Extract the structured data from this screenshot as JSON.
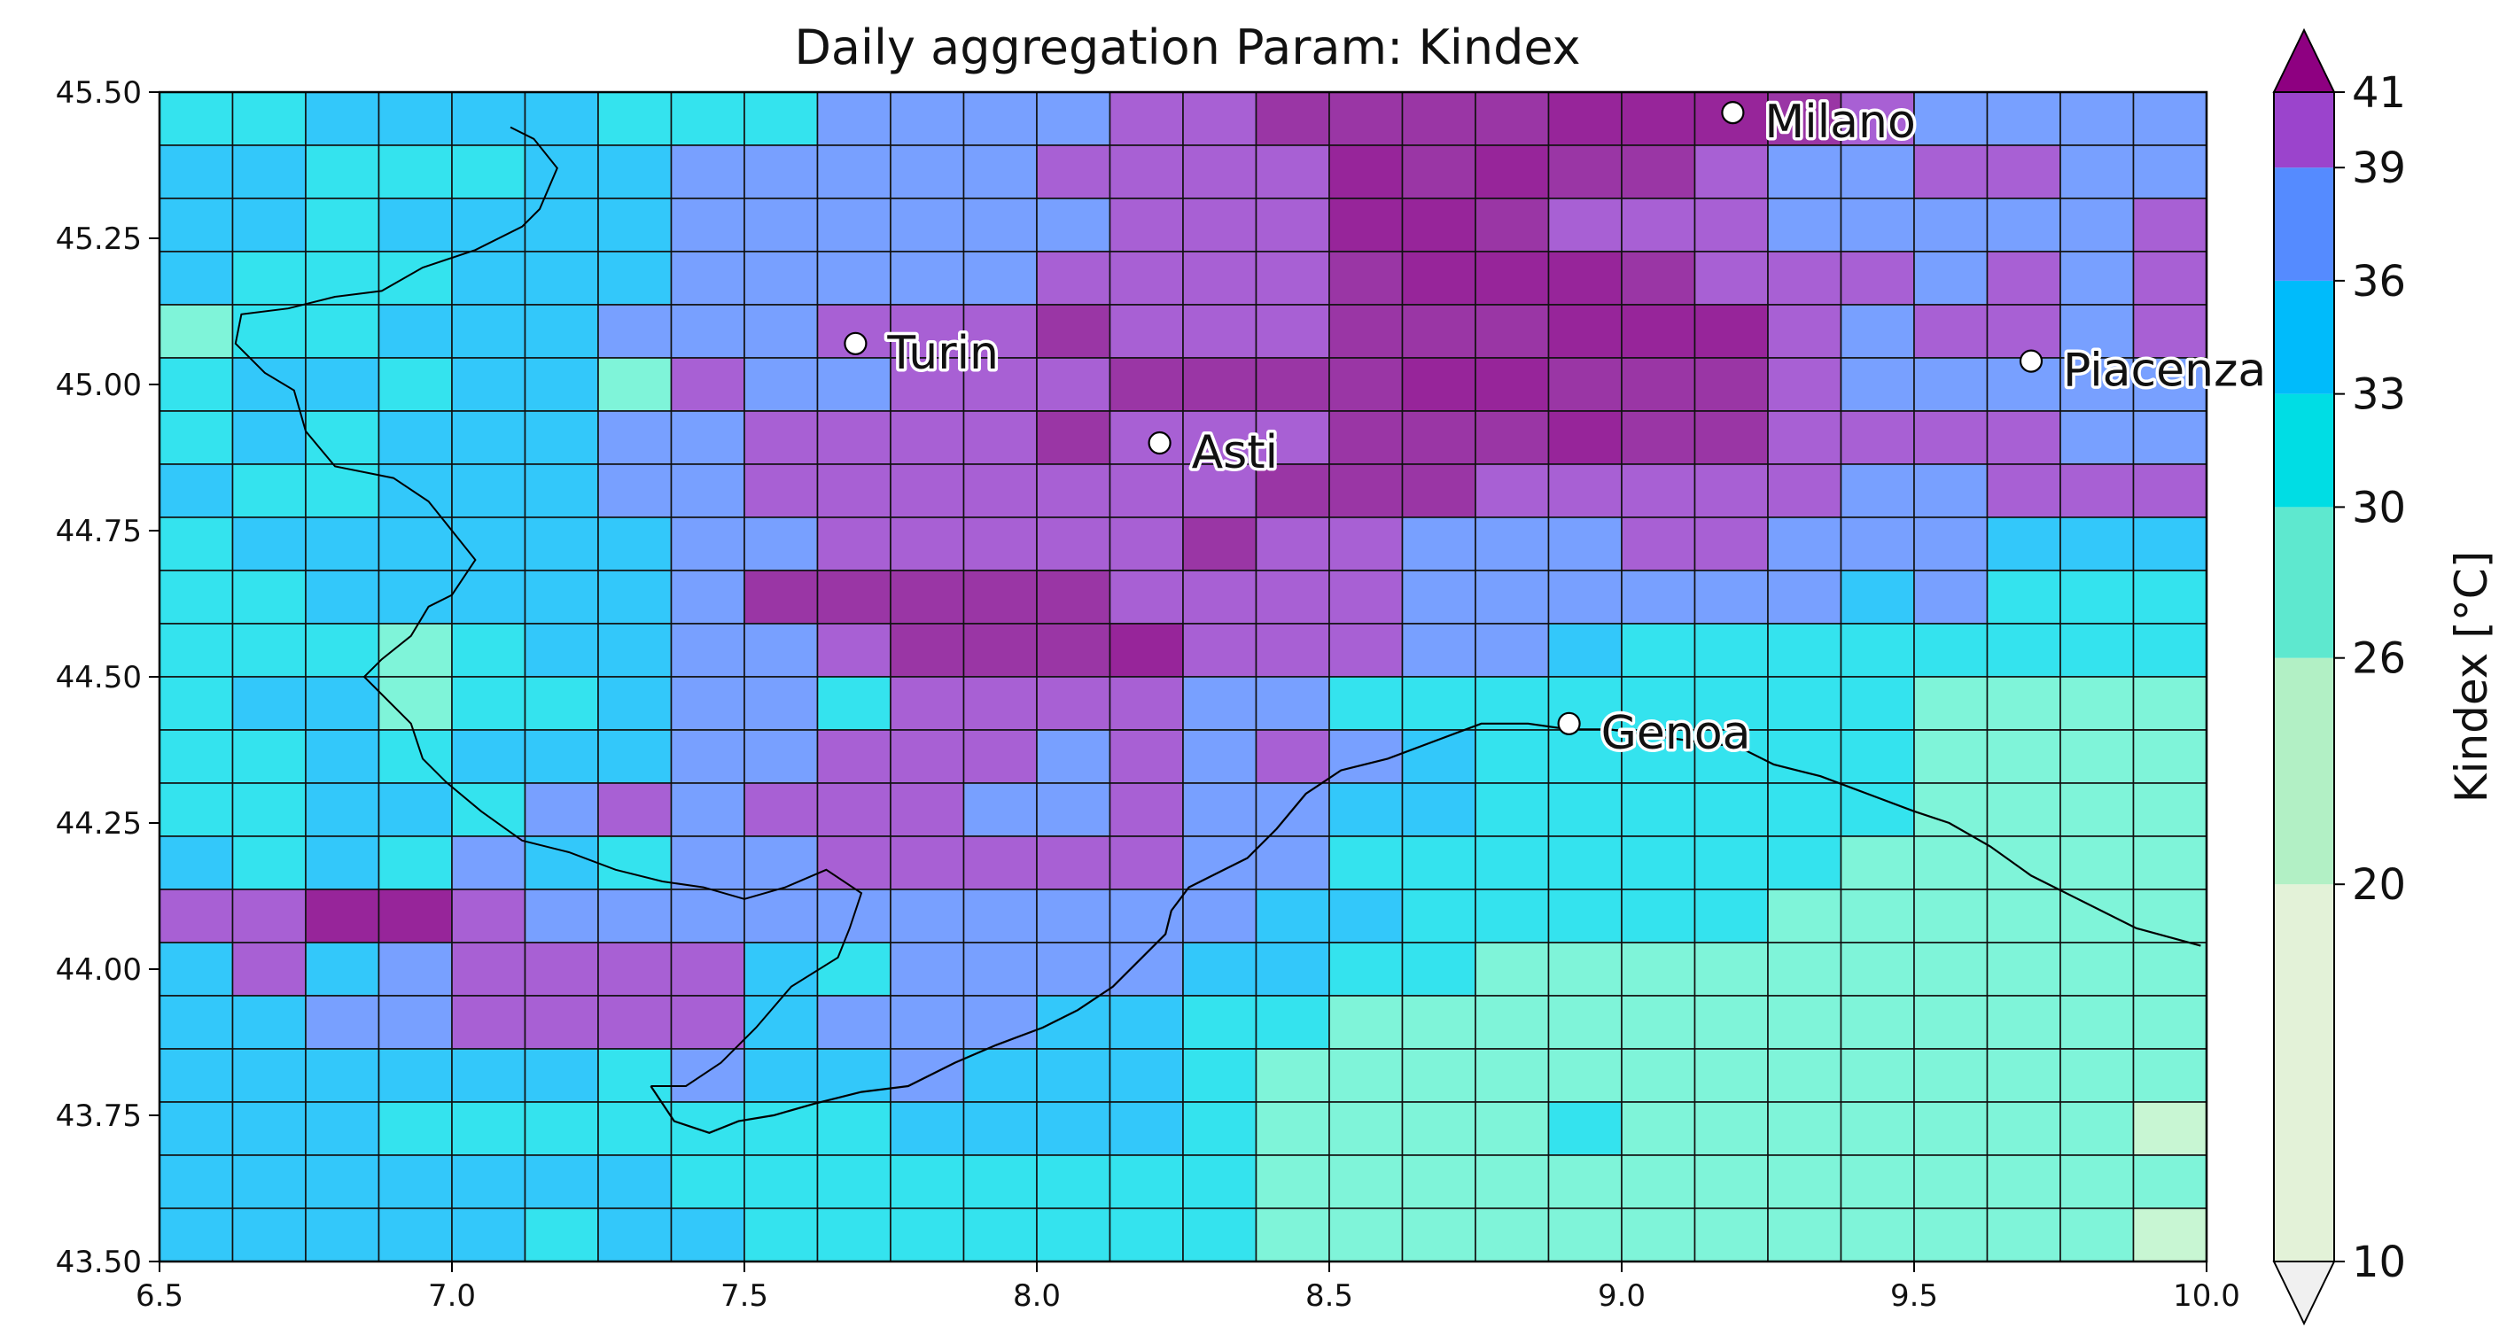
{
  "title": "Daily aggregation Param: Kindex",
  "map": {
    "lon_range": [
      6.5,
      10.0
    ],
    "lat_range": [
      43.5,
      45.5
    ],
    "cell_size_deg": 0.1,
    "x_ticks": [
      "6.5",
      "7.0",
      "7.5",
      "8.0",
      "8.5",
      "9.0",
      "9.5",
      "10.0"
    ],
    "y_ticks": [
      "45.50",
      "45.25",
      "45.00",
      "44.75",
      "44.50",
      "44.25",
      "44.00",
      "43.75",
      "43.50"
    ],
    "rows_north_to_south": [
      "4455554446666778888999876666",
      "5544455666667777989887667766",
      "5545555666666777998777666667",
      "5444555666667777899987776767",
      "3445556667778777888999767767",
      "4554553766777888899888766666",
      "4545556677778777888988777766",
      "5445556677777778887777766777",
      "4555555667777787766677666555",
      "4455555688888777766666656444",
      "4443455667888977766544444444",
      "4553445664777766444444443333",
      "4454555667776767654444443333",
      "4455467677766766554444443333",
      "5454654667777766444444433333",
      "7799766666666665544444333333",
      "5756777754666655443333333333",
      "5566777756665544333333333333",
      "5555554655655543333333333333",
      "5554444444555543333433333332",
      "5555555444444443333333333333",
      "5555545544444443333333333332"
    ],
    "cities": [
      {
        "name": "Milano",
        "lon": 9.19,
        "lat": 45.465
      },
      {
        "name": "Turin",
        "lon": 7.69,
        "lat": 45.07
      },
      {
        "name": "Piacenza",
        "lon": 9.7,
        "lat": 45.04
      },
      {
        "name": "Asti",
        "lon": 8.21,
        "lat": 44.9
      },
      {
        "name": "Genoa",
        "lon": 8.91,
        "lat": 44.42
      }
    ],
    "coastline": [
      [
        9.99,
        44.04
      ],
      [
        9.88,
        44.07
      ],
      [
        9.78,
        44.12
      ],
      [
        9.7,
        44.16
      ],
      [
        9.63,
        44.21
      ],
      [
        9.56,
        44.25
      ],
      [
        9.5,
        44.27
      ],
      [
        9.42,
        44.3
      ],
      [
        9.34,
        44.33
      ],
      [
        9.26,
        44.35
      ],
      [
        9.2,
        44.38
      ],
      [
        9.12,
        44.39
      ],
      [
        9.05,
        44.4
      ],
      [
        8.98,
        44.41
      ],
      [
        8.91,
        44.41
      ],
      [
        8.84,
        44.42
      ],
      [
        8.76,
        44.42
      ],
      [
        8.68,
        44.39
      ],
      [
        8.6,
        44.36
      ],
      [
        8.52,
        44.34
      ],
      [
        8.46,
        44.3
      ],
      [
        8.41,
        44.24
      ],
      [
        8.36,
        44.19
      ],
      [
        8.3,
        44.16
      ],
      [
        8.26,
        44.14
      ],
      [
        8.23,
        44.1
      ],
      [
        8.22,
        44.06
      ],
      [
        8.18,
        44.02
      ],
      [
        8.13,
        43.97
      ],
      [
        8.07,
        43.93
      ],
      [
        8.01,
        43.9
      ],
      [
        7.93,
        43.87
      ],
      [
        7.86,
        43.84
      ],
      [
        7.78,
        43.8
      ],
      [
        7.7,
        43.79
      ],
      [
        7.62,
        43.77
      ],
      [
        7.55,
        43.75
      ],
      [
        7.49,
        43.74
      ],
      [
        7.44,
        43.72
      ],
      [
        7.38,
        43.74
      ],
      [
        7.34,
        43.8
      ]
    ],
    "border": [
      [
        7.1,
        45.44
      ],
      [
        7.14,
        45.42
      ],
      [
        7.18,
        45.37
      ],
      [
        7.15,
        45.3
      ],
      [
        7.12,
        45.27
      ],
      [
        7.04,
        45.23
      ],
      [
        6.95,
        45.2
      ],
      [
        6.88,
        45.16
      ],
      [
        6.8,
        45.15
      ],
      [
        6.72,
        45.13
      ],
      [
        6.64,
        45.12
      ],
      [
        6.63,
        45.07
      ],
      [
        6.68,
        45.02
      ],
      [
        6.73,
        44.99
      ],
      [
        6.75,
        44.92
      ],
      [
        6.8,
        44.86
      ],
      [
        6.9,
        44.84
      ],
      [
        6.96,
        44.8
      ],
      [
        7.0,
        44.75
      ],
      [
        7.04,
        44.7
      ],
      [
        7.0,
        44.64
      ],
      [
        6.96,
        44.62
      ],
      [
        6.93,
        44.57
      ],
      [
        6.88,
        44.53
      ],
      [
        6.85,
        44.5
      ],
      [
        6.9,
        44.45
      ],
      [
        6.93,
        44.42
      ],
      [
        6.95,
        44.36
      ],
      [
        6.99,
        44.32
      ],
      [
        7.05,
        44.27
      ],
      [
        7.12,
        44.22
      ],
      [
        7.2,
        44.2
      ],
      [
        7.28,
        44.17
      ],
      [
        7.36,
        44.15
      ],
      [
        7.43,
        44.14
      ],
      [
        7.5,
        44.12
      ],
      [
        7.57,
        44.14
      ],
      [
        7.64,
        44.17
      ],
      [
        7.7,
        44.13
      ],
      [
        7.68,
        44.07
      ],
      [
        7.66,
        44.02
      ],
      [
        7.58,
        43.97
      ],
      [
        7.52,
        43.9
      ],
      [
        7.46,
        43.84
      ],
      [
        7.4,
        43.8
      ],
      [
        7.34,
        43.8
      ]
    ]
  },
  "colorbar": {
    "label": "Kindex [°C]",
    "tick_labels": [
      "10",
      "20",
      "26",
      "30",
      "33",
      "36",
      "39",
      "41"
    ],
    "bins": [
      {
        "from": 10,
        "to": 20,
        "color": "#e3f2d8"
      },
      {
        "from": 20,
        "to": 26,
        "color": "#b2f0c5"
      },
      {
        "from": 26,
        "to": 30,
        "color": "#5ee8cf"
      },
      {
        "from": 30,
        "to": 33,
        "color": "#00dde4"
      },
      {
        "from": 33,
        "to": 36,
        "color": "#00bbfb"
      },
      {
        "from": 36,
        "to": 39,
        "color": "#558bff"
      },
      {
        "from": 39,
        "to": 41,
        "color": "#9b44cc"
      }
    ],
    "under_color": "#f0f0f0",
    "over_color": "#8e0081"
  },
  "cell_colors": {
    "1": "#e8f5dc",
    "2": "#c8f6d3",
    "3": "#7ff4d9",
    "4": "#34e3ee",
    "5": "#33c8fa",
    "6": "#78a0ff",
    "7": "#a860d4",
    "8": "#9a36a5",
    "9": "#97259a"
  }
}
